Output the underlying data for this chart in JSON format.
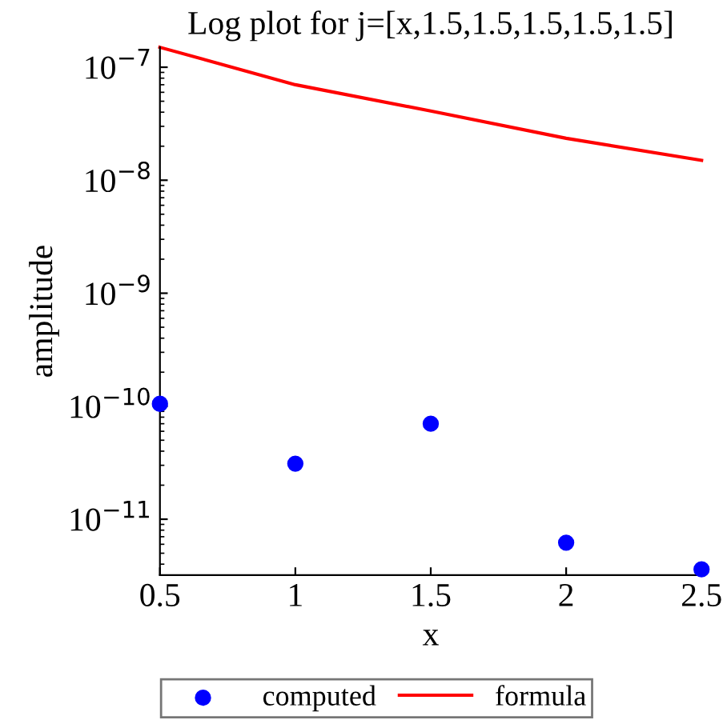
{
  "chart_data": {
    "type": "scatter",
    "title": "Log plot for j=[x,1.5,1.5,1.5,1.5,1.5]",
    "xlabel": "x",
    "ylabel": "amplitude",
    "log": "y",
    "xlim": [
      0.5,
      2.5
    ],
    "ylim": [
      3.2e-12,
      1.5e-07
    ],
    "xticks": [
      0.5,
      1,
      1.5,
      2,
      2.5
    ],
    "yticks": [
      {
        "value": 1e-11,
        "label": "10$^{−11}$"
      },
      {
        "value": 1e-10,
        "label": "10$^{−10}$"
      },
      {
        "value": 1e-09,
        "label": "10$^{−9}$"
      },
      {
        "value": 1e-08,
        "label": "10$^{−8}$"
      },
      {
        "value": 1e-07,
        "label": "10$^{−7}$"
      }
    ],
    "legend": "bottom",
    "grid": false,
    "series": [
      {
        "name": "computed",
        "marker": "circle",
        "color": "#0000ff",
        "x": [
          0.5,
          1,
          1.5,
          2,
          2.5
        ],
        "values": [
          1.05e-10,
          3.1e-11,
          7e-11,
          6.2e-12,
          3.6e-12
        ]
      },
      {
        "name": "formula",
        "type": "line",
        "marker": "none",
        "line_style": "solid",
        "color": "#ff0000",
        "x": [
          0.5,
          1,
          1.5,
          2,
          2.5
        ],
        "values": [
          1.5e-07,
          7e-08,
          4.1e-08,
          2.35e-08,
          1.5e-08
        ]
      }
    ]
  }
}
